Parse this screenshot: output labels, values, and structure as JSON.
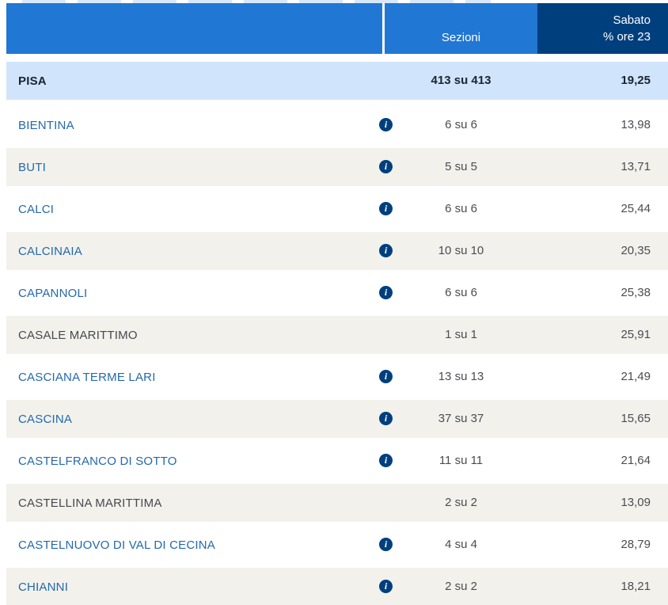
{
  "header": {
    "sezioni_label": "Sezioni",
    "day_label_line1": "Sabato",
    "day_label_line2": "% ore 23"
  },
  "summary_row": {
    "name": "PISA",
    "sezioni": "413 su 413",
    "percent": "19,25"
  },
  "rows": [
    {
      "name": "BIENTINA",
      "link": true,
      "info": true,
      "sezioni": "6 su 6",
      "percent": "13,98"
    },
    {
      "name": "BUTI",
      "link": true,
      "info": true,
      "sezioni": "5 su 5",
      "percent": "13,71"
    },
    {
      "name": "CALCI",
      "link": true,
      "info": true,
      "sezioni": "6 su 6",
      "percent": "25,44"
    },
    {
      "name": "CALCINAIA",
      "link": true,
      "info": true,
      "sezioni": "10 su 10",
      "percent": "20,35"
    },
    {
      "name": "CAPANNOLI",
      "link": true,
      "info": true,
      "sezioni": "6 su 6",
      "percent": "25,38"
    },
    {
      "name": "CASALE MARITTIMO",
      "link": false,
      "info": false,
      "sezioni": "1 su 1",
      "percent": "25,91"
    },
    {
      "name": "CASCIANA TERME LARI",
      "link": true,
      "info": true,
      "sezioni": "13 su 13",
      "percent": "21,49"
    },
    {
      "name": "CASCINA",
      "link": true,
      "info": true,
      "sezioni": "37 su 37",
      "percent": "15,65"
    },
    {
      "name": "CASTELFRANCO DI SOTTO",
      "link": true,
      "info": true,
      "sezioni": "11 su 11",
      "percent": "21,64"
    },
    {
      "name": "CASTELLINA MARITTIMA",
      "link": false,
      "info": false,
      "sezioni": "2 su 2",
      "percent": "13,09"
    },
    {
      "name": "CASTELNUOVO DI VAL DI CECINA",
      "link": true,
      "info": true,
      "sezioni": "4 su 4",
      "percent": "28,79"
    },
    {
      "name": "CHIANNI",
      "link": true,
      "info": true,
      "sezioni": "2 su 2",
      "percent": "18,21"
    }
  ],
  "icons": {
    "info": "i"
  },
  "colors": {
    "header_blue": "#2177d4",
    "header_navy": "#003f7d",
    "summary_row_bg": "#d0e4fb",
    "alt_row_bg": "#f2f1ec",
    "row_bg": "#ffffff",
    "link_blue": "#2369ad",
    "name_gray": "#48484d",
    "value_gray": "#4c4c51",
    "summary_text": "#1a2433",
    "header_text": "#ffffff",
    "banner_remnant": "#cde2f6"
  }
}
